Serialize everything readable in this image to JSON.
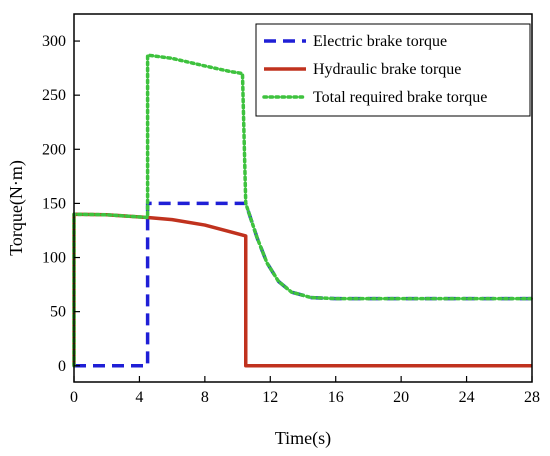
{
  "chart_data": {
    "type": "line",
    "title": "",
    "xlabel": "Time(s)",
    "ylabel": "Torque(N·m)",
    "xlim": [
      0,
      28
    ],
    "ylim": [
      -15,
      325
    ],
    "xticks": [
      0,
      4,
      8,
      12,
      16,
      20,
      24,
      28
    ],
    "yticks": [
      0,
      50,
      100,
      150,
      200,
      250,
      300
    ],
    "grid": false,
    "legend_position": "top-right",
    "series": [
      {
        "name": "Electric brake torque",
        "color": "#1f1fd6",
        "style": "dashed",
        "points": [
          [
            0,
            0
          ],
          [
            4.5,
            0
          ],
          [
            4.5,
            150
          ],
          [
            10.5,
            150
          ],
          [
            11.2,
            118
          ],
          [
            11.8,
            95
          ],
          [
            12.5,
            78
          ],
          [
            13.3,
            68
          ],
          [
            14.5,
            63
          ],
          [
            16,
            62
          ],
          [
            28,
            62
          ]
        ]
      },
      {
        "name": "Hydraulic brake torque",
        "color": "#c0321e",
        "style": "solid",
        "points": [
          [
            0,
            0
          ],
          [
            0,
            140
          ],
          [
            2,
            139.5
          ],
          [
            4.5,
            137
          ],
          [
            6,
            135
          ],
          [
            8,
            130
          ],
          [
            9.5,
            124
          ],
          [
            10.5,
            120
          ],
          [
            10.5,
            0
          ],
          [
            28,
            0
          ]
        ]
      },
      {
        "name": "Total required brake torque",
        "color": "#3ec23e",
        "style": "dotted",
        "points": [
          [
            0,
            0
          ],
          [
            0,
            140
          ],
          [
            2,
            139.5
          ],
          [
            4.5,
            137
          ],
          [
            4.5,
            287
          ],
          [
            6,
            284
          ],
          [
            8,
            277
          ],
          [
            9.5,
            272
          ],
          [
            10.3,
            270
          ],
          [
            10.5,
            150
          ],
          [
            11.2,
            118
          ],
          [
            11.8,
            95
          ],
          [
            12.5,
            78
          ],
          [
            13.3,
            68
          ],
          [
            14.5,
            63
          ],
          [
            16,
            62
          ],
          [
            28,
            62
          ]
        ]
      }
    ]
  }
}
